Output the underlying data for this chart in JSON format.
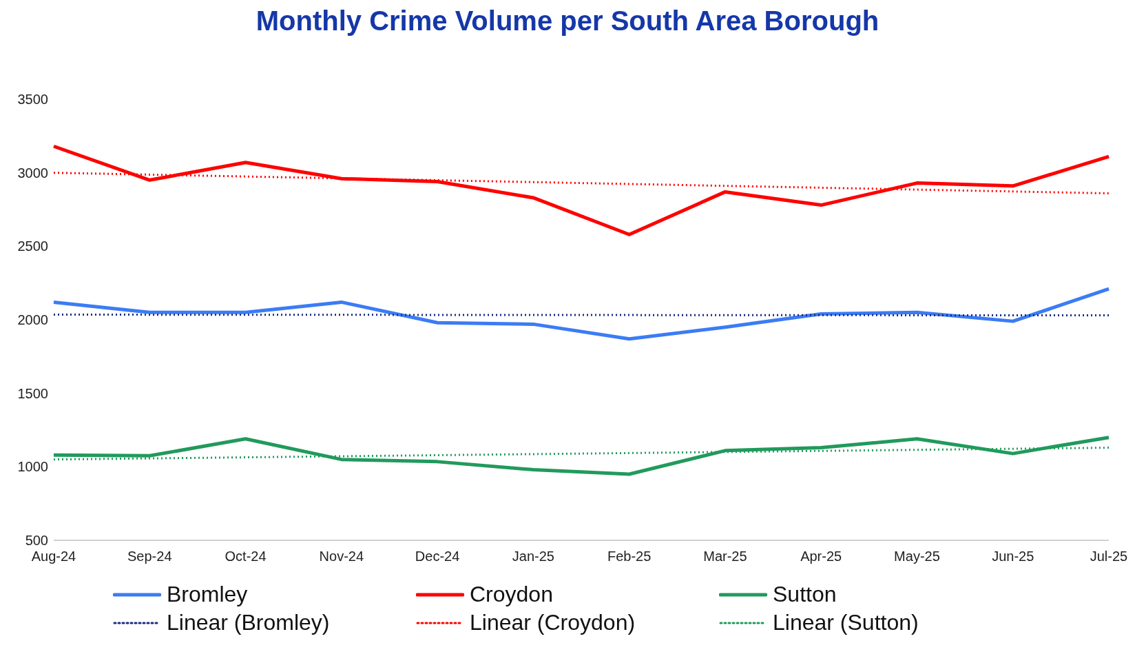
{
  "chart_data": {
    "type": "line",
    "title": "Monthly Crime Volume per South Area Borough",
    "categories": [
      "Aug-24",
      "Sep-24",
      "Oct-24",
      "Nov-24",
      "Dec-24",
      "Jan-25",
      "Feb-25",
      "Mar-25",
      "Apr-25",
      "May-25",
      "Jun-25",
      "Jul-25"
    ],
    "series": [
      {
        "name": "Bromley",
        "color": "#3b7cf5",
        "line_style": "solid",
        "values": [
          2120,
          2050,
          2050,
          2120,
          1980,
          1970,
          1870,
          1950,
          2040,
          2050,
          1990,
          2210
        ]
      },
      {
        "name": "Croydon",
        "color": "#ff0000",
        "line_style": "solid",
        "values": [
          3180,
          2950,
          3070,
          2960,
          2940,
          2830,
          2580,
          2870,
          2780,
          2930,
          2910,
          3110
        ]
      },
      {
        "name": "Sutton",
        "color": "#219a5c",
        "line_style": "solid",
        "values": [
          1080,
          1075,
          1190,
          1050,
          1035,
          980,
          950,
          1110,
          1130,
          1190,
          1090,
          1200
        ]
      },
      {
        "name": "Linear (Bromley)",
        "color": "#1a2b80",
        "line_style": "dotted",
        "values": [
          2035,
          null,
          null,
          null,
          null,
          null,
          null,
          null,
          null,
          null,
          null,
          2030
        ]
      },
      {
        "name": "Linear (Croydon)",
        "color": "#ff0000",
        "line_style": "dotted",
        "values": [
          3000,
          null,
          null,
          null,
          null,
          null,
          null,
          null,
          null,
          null,
          null,
          2860
        ]
      },
      {
        "name": "Linear (Sutton)",
        "color": "#219a5c",
        "line_style": "dotted",
        "values": [
          1050,
          null,
          null,
          null,
          null,
          null,
          null,
          null,
          null,
          null,
          null,
          1130
        ]
      }
    ],
    "ylim": [
      500,
      3500
    ],
    "yticks": [
      500,
      1000,
      1500,
      2000,
      2500,
      3000,
      3500
    ],
    "grid": false,
    "legend": "bottom",
    "marker": "none"
  }
}
